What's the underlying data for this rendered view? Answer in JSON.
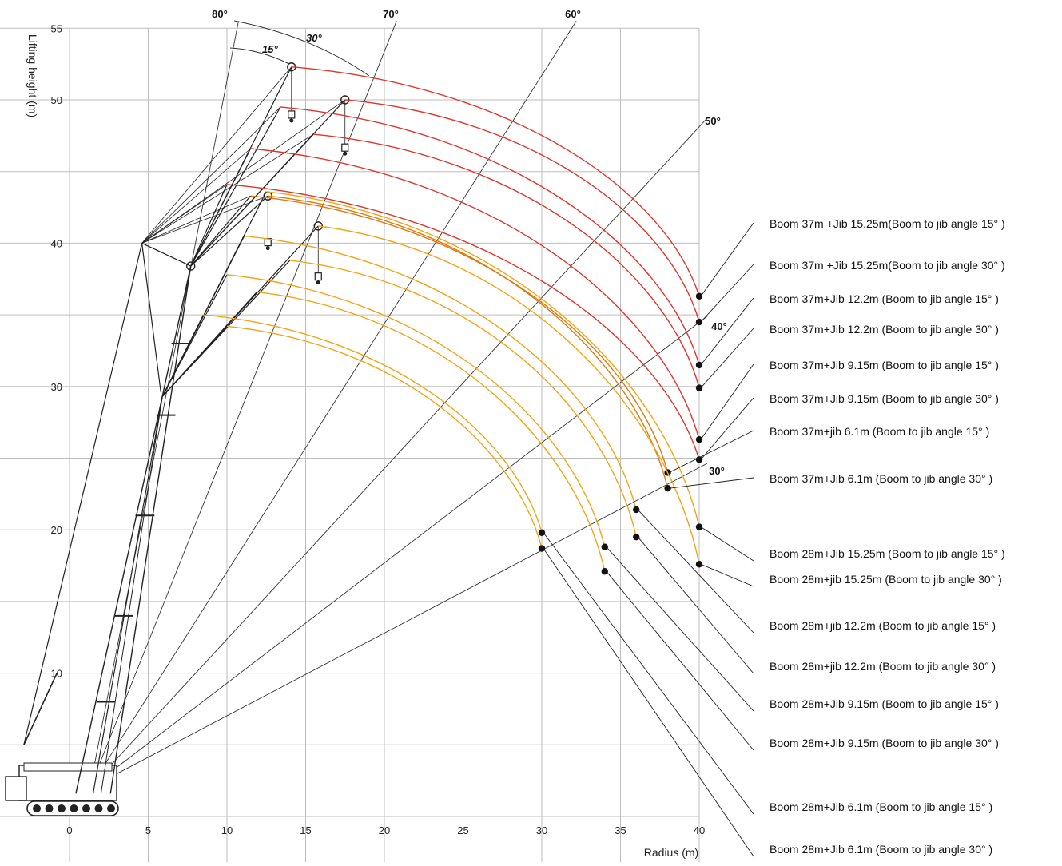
{
  "chart_data": {
    "type": "diagram",
    "xlabel": "Radius (m)",
    "ylabel": "Lifting height (m)",
    "x_ticks": [
      0,
      5,
      10,
      15,
      20,
      25,
      30,
      35,
      40
    ],
    "y_ticks": [
      10,
      20,
      30,
      40,
      50,
      55
    ],
    "xlim": [
      0,
      40
    ],
    "ylim": [
      -5,
      55
    ],
    "grid": true,
    "boom_angle_lines": [
      {
        "label": "80°",
        "angle": 80
      },
      {
        "label": "70°",
        "angle": 70
      },
      {
        "label": "60°",
        "angle": 60
      },
      {
        "label": "50°",
        "angle": 50
      },
      {
        "label": "40°",
        "angle": 40
      },
      {
        "label": "30°",
        "angle": 30
      }
    ],
    "jib_angle_labels": [
      "15°",
      "30°"
    ],
    "curves": [
      {
        "name": "Boom 37m +Jib 15.25m(Boom to jib angle 15° )",
        "color": "#e0352b",
        "start": [
          14.1,
          52.3
        ],
        "end": [
          40,
          36.3
        ]
      },
      {
        "name": "Boom 37m +Jib 15.25m(Boom to jib angle 30° )",
        "color": "#e0352b",
        "start": [
          17.5,
          50.0
        ],
        "end": [
          40,
          34.5
        ]
      },
      {
        "name": "Boom 37m+Jib 12.2m (Boom to jib angle 15° )",
        "color": "#e0352b",
        "start": [
          13.4,
          49.5
        ],
        "end": [
          40,
          31.5
        ]
      },
      {
        "name": "Boom 37m+Jib 12.2m (Boom to jib angle 30° )",
        "color": "#e0352b",
        "start": [
          15.5,
          47.6
        ],
        "end": [
          40,
          29.9
        ]
      },
      {
        "name": "Boom 37m+Jib 9.15m (Boom to jib angle 15° )",
        "color": "#e0352b",
        "start": [
          11.5,
          46.6
        ],
        "end": [
          40,
          26.3
        ]
      },
      {
        "name": "Boom 37m+Jib 9.15m (Boom to jib angle 30° )",
        "color": "#e0352b",
        "start": [
          10.0,
          44.1
        ],
        "end": [
          40,
          24.9
        ]
      },
      {
        "name": "Boom 37m+jib 6.1m (Boom to jib angle 15° )",
        "color": "#e07a10",
        "start": [
          11.5,
          43.3
        ],
        "end": [
          38,
          24.0
        ]
      },
      {
        "name": "Boom 37m+Jib 6.1m (Boom to jib angle 30° )",
        "color": "#e07a10",
        "start": [
          12.6,
          43.3
        ],
        "end": [
          38,
          22.9
        ]
      },
      {
        "name": "Boom 28m+Jib 15.25m (Boom to jib angle 15° )",
        "color": "#f2a516",
        "start": [
          12.5,
          43.6
        ],
        "end": [
          40,
          20.2
        ]
      },
      {
        "name": "Boom 28m+jib 15.25m (Boom to jib angle 30° )",
        "color": "#f2a516",
        "start": [
          15.8,
          41.2
        ],
        "end": [
          40,
          17.6
        ]
      },
      {
        "name": "Boom 28m+jib 12.2m (Boom to jib angle 15° )",
        "color": "#f2a516",
        "start": [
          11.1,
          40.5
        ],
        "end": [
          36,
          21.4
        ]
      },
      {
        "name": "Boom 28m+jib 12.2m (Boom to jib angle 30° )",
        "color": "#f2a516",
        "start": [
          14.0,
          38.8
        ],
        "end": [
          36,
          19.5
        ]
      },
      {
        "name": "Boom 28m+Jib 9.15m (Boom to jib angle 15° )",
        "color": "#f2a516",
        "start": [
          10.0,
          37.8
        ],
        "end": [
          34,
          18.8
        ]
      },
      {
        "name": "Boom 28m+Jib 9.15m (Boom to jib angle 30° )",
        "color": "#f2a516",
        "start": [
          11.9,
          36.6
        ],
        "end": [
          34,
          17.1
        ]
      },
      {
        "name": "Boom 28m+Jib 6.1m (Boom to jib angle 15° )",
        "color": "#f2a516",
        "start": [
          8.5,
          35.0
        ],
        "end": [
          30,
          19.8
        ]
      },
      {
        "name": "Boom 28m+Jib 6.1m (Boom to jib angle 30° )",
        "color": "#f2a516",
        "start": [
          10.0,
          34.2
        ],
        "end": [
          30,
          18.7
        ]
      }
    ]
  },
  "colors": {
    "red": "#e0352b",
    "orange": "#e07a10",
    "yellow": "#f2a516",
    "grid": "#bdbdbd"
  }
}
